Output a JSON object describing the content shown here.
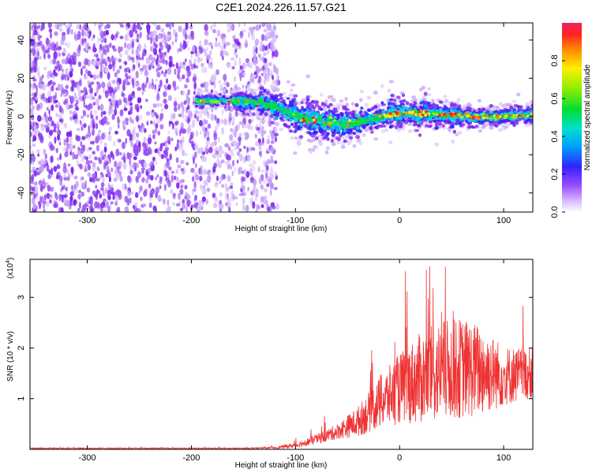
{
  "title": "C2E1.2024.226.11.57.G21",
  "colors": {
    "snr_line": "#ee3333",
    "spectrogram_noise": "#8833ee",
    "axis": "#000000"
  },
  "chart_data": [
    {
      "type": "heatmap",
      "xlabel": "Height of straight line (km)",
      "ylabel": "Frequency (Hz)",
      "xlim": [
        -355,
        128
      ],
      "ylim": [
        -50,
        49
      ],
      "xticks": [
        -300,
        -200,
        -100,
        0,
        100
      ],
      "xtick_labels": [
        "-300",
        "-200",
        "-100",
        "0",
        "100"
      ],
      "yticks": [
        -40,
        -20,
        0,
        20,
        40
      ],
      "ytick_labels": [
        "-40",
        "-20",
        "0",
        "20",
        "40"
      ],
      "noise_region_x": [
        -355,
        -125
      ],
      "signal_band": {
        "x": [
          -195,
          -180,
          -165,
          -150,
          -130,
          -110,
          -90,
          -70,
          -50,
          -30,
          -10,
          10,
          30,
          50,
          70,
          90,
          110,
          128
        ],
        "center_freq": [
          8,
          8,
          8,
          8,
          7,
          3,
          -1,
          -3,
          -4,
          -2,
          1,
          2,
          1,
          1,
          0,
          0,
          0,
          1
        ],
        "half_width": [
          2,
          2,
          2,
          4,
          5,
          6,
          7,
          7,
          6,
          5,
          5,
          5,
          5,
          4,
          4,
          3,
          3,
          3
        ]
      },
      "colorbar": {
        "label": "Normalized spectral amplitude",
        "range": [
          0,
          1
        ],
        "ticks": [
          0.0,
          0.2,
          0.4,
          0.6,
          0.8
        ],
        "tick_labels": [
          "0.0",
          "0.2",
          "0.4",
          "0.6",
          "0.8"
        ]
      },
      "grid": false
    },
    {
      "type": "line",
      "xlabel": "Height of straight line (km)",
      "ylabel": "SNR (10 * v/v)",
      "y_multiplier": "(x10",
      "y_multiplier_exp": "4",
      "y_multiplier_close": ")",
      "xlim": [
        -355,
        128
      ],
      "ylim": [
        0,
        3.75
      ],
      "xticks": [
        -300,
        -200,
        -100,
        0,
        100
      ],
      "xtick_labels": [
        "-300",
        "-200",
        "-100",
        "0",
        "100"
      ],
      "yticks": [
        1,
        2,
        3
      ],
      "ytick_labels": [
        "1",
        "2",
        "3"
      ],
      "series": [
        {
          "x": [
            -355,
            -300,
            -250,
            -200,
            -150,
            -120,
            -100,
            -80,
            -60,
            -40,
            -20,
            0,
            20,
            40,
            60,
            80,
            100,
            128
          ],
          "y_mean": [
            0.02,
            0.02,
            0.02,
            0.02,
            0.02,
            0.03,
            0.08,
            0.2,
            0.35,
            0.55,
            0.9,
            1.2,
            1.4,
            1.55,
            1.6,
            1.55,
            1.45,
            1.5
          ],
          "y_spread": [
            0.01,
            0.01,
            0.01,
            0.01,
            0.01,
            0.02,
            0.05,
            0.1,
            0.15,
            0.3,
            0.5,
            0.7,
            0.9,
            1.0,
            1.0,
            0.9,
            0.6,
            0.5
          ]
        }
      ],
      "grid": false
    }
  ]
}
